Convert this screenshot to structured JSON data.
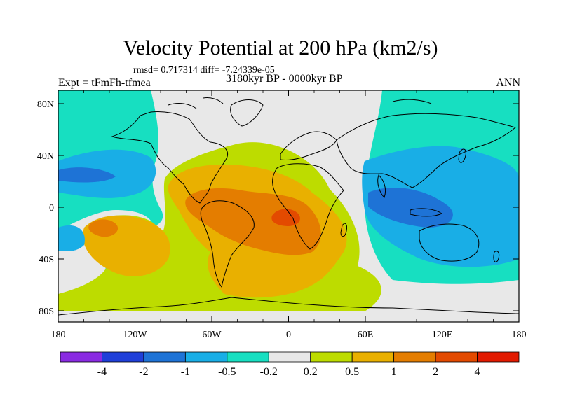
{
  "title": "Velocity Potential at 200 hPa (km2/s)",
  "stats": "rmsd= 0.717314 diff= -7.24339e-05",
  "left_label": "Expt = tFmFh-tfmea",
  "center_label": "3180kyr BP - 0000kyr BP",
  "right_label": "ANN",
  "lat_ticks": [
    "80N",
    "40N",
    "0",
    "40S",
    "80S"
  ],
  "lon_ticks": [
    "180",
    "120W",
    "60W",
    "0",
    "60E",
    "120E",
    "180"
  ],
  "colorbar": {
    "colors": [
      "#8a2be2",
      "#1f3fd8",
      "#1e73d6",
      "#19aee6",
      "#17dfc1",
      "#e8e8e8",
      "#bddc00",
      "#e9b000",
      "#e47d00",
      "#e34a00",
      "#e21a00"
    ],
    "labels": [
      "-4",
      "-2",
      "-1",
      "-0.5",
      "-0.2",
      "0.2",
      "0.5",
      "1",
      "2",
      "4"
    ]
  },
  "fill_colors": {
    "strong_negative": "#1e73d6",
    "negative": "#19aee6",
    "weak_negative": "#17dfc1",
    "neutral": "#e8e8e8",
    "weak_positive": "#bddc00",
    "positive": "#e9b000",
    "strong_positive": "#e47d00",
    "max_positive": "#e34a00"
  }
}
